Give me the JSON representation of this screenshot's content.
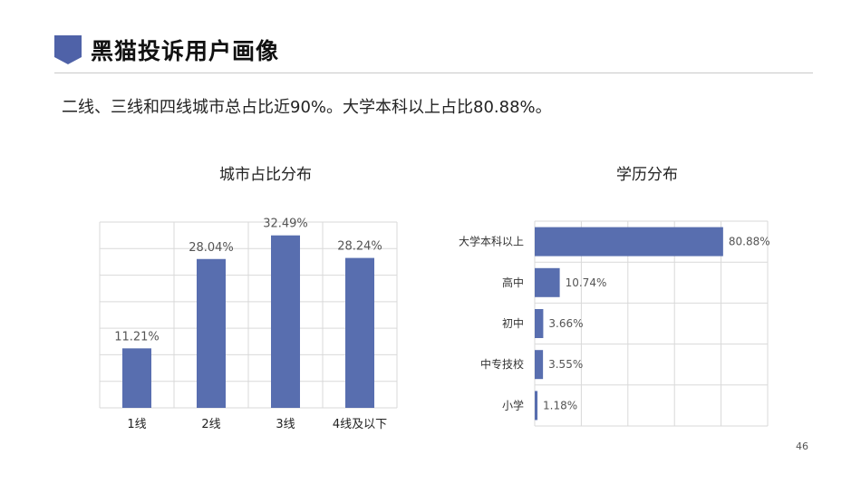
{
  "header": {
    "title": "黑猫投诉用户画像",
    "icon": "shield-icon",
    "accent": "#4f62a8"
  },
  "summary": "二线、三线和四线城市总占比近90%。大学本科以上占比80.88%。",
  "page_number": "46",
  "chart_data": [
    {
      "type": "bar",
      "title": "城市占比分布",
      "categories": [
        "1线",
        "2线",
        "3线",
        "4线及以下"
      ],
      "values": [
        11.21,
        28.04,
        32.49,
        28.24
      ],
      "value_labels": [
        "11.21%",
        "28.04%",
        "32.49%",
        "28.24%"
      ],
      "ylim": [
        0,
        35
      ],
      "grid": true,
      "color": "#586eaf"
    },
    {
      "type": "bar",
      "orientation": "horizontal",
      "title": "学历分布",
      "categories": [
        "大学本科以上",
        "高中",
        "初中",
        "中专技校",
        "小学"
      ],
      "values": [
        80.88,
        10.74,
        3.66,
        3.55,
        1.18
      ],
      "value_labels": [
        "80.88%",
        "10.74%",
        "3.66%",
        "3.55%",
        "1.18%"
      ],
      "xlim": [
        0,
        100
      ],
      "grid": true,
      "color": "#586eaf"
    }
  ]
}
